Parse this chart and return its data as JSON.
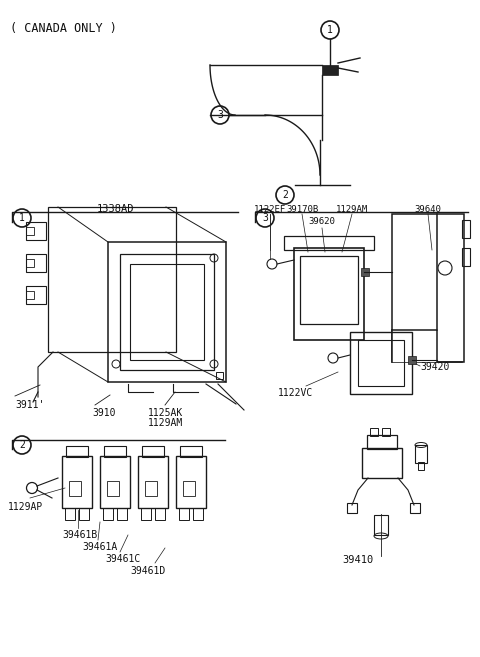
{
  "bg_color": "#ffffff",
  "line_color": "#1a1a1a",
  "text_color": "#111111",
  "canada_only": "( CANADA ONLY )",
  "s1_label": "1338AD",
  "s1_parts": [
    "3911'",
    "3910",
    "1125AK",
    "1129AM"
  ],
  "s2_parts": [
    "1129AP",
    "39461B",
    "39461A",
    "39461C",
    "39461D"
  ],
  "s3_parts_top": [
    "1122EF",
    "39170B",
    "1129AM",
    "39620",
    "39640"
  ],
  "s3_parts_bot": [
    "1122VC",
    "39420",
    "39410"
  ]
}
